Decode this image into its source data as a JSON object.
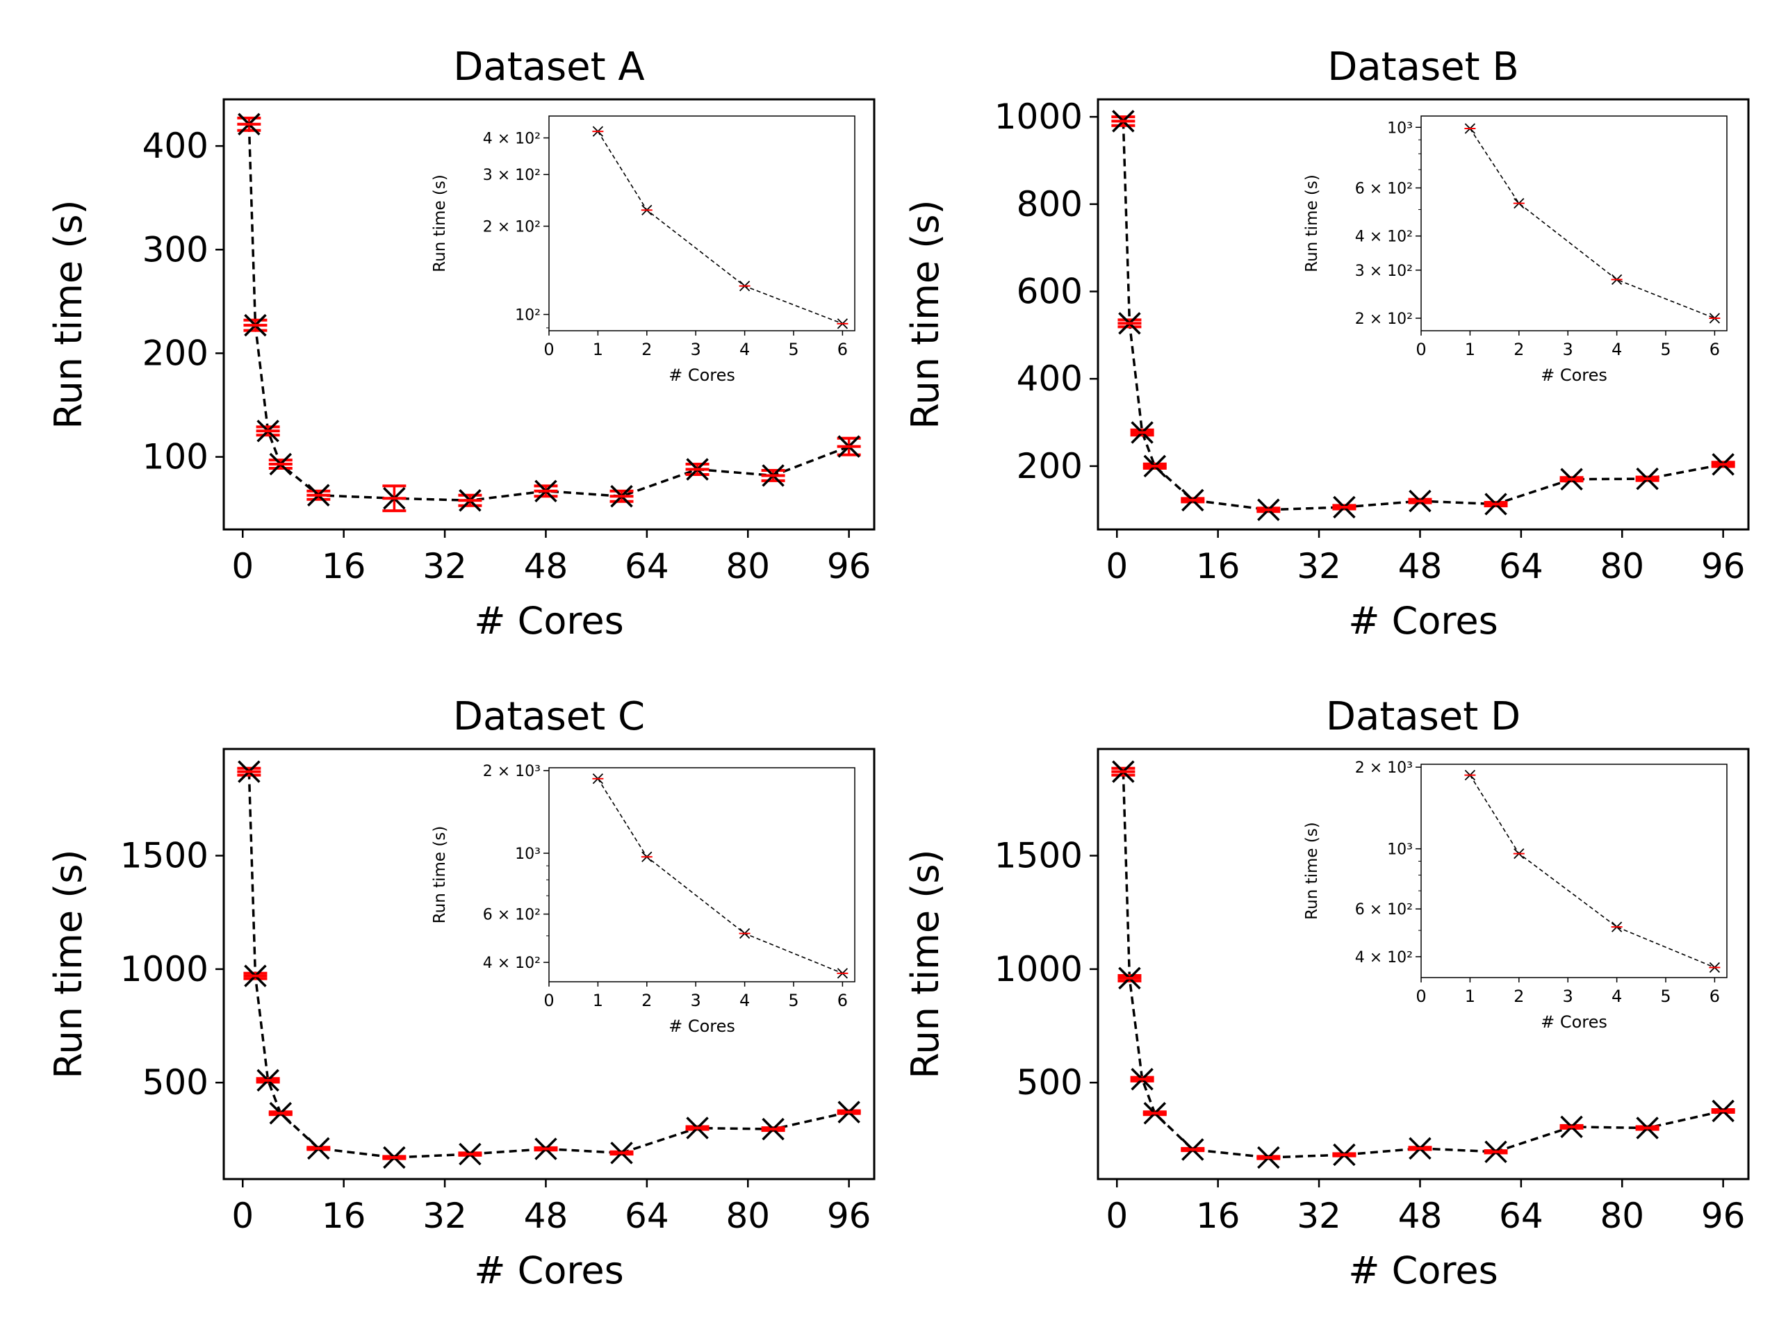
{
  "chart_data": [
    {
      "type": "line",
      "title": "Dataset A",
      "xlabel": "# Cores",
      "ylabel": "Run time (s)",
      "xlim": [
        -3,
        100
      ],
      "ylim": [
        30,
        445
      ],
      "xticks": [
        0,
        16,
        32,
        48,
        64,
        80,
        96
      ],
      "yticks": [
        100,
        200,
        300,
        400
      ],
      "x": [
        1,
        2,
        4,
        6,
        12,
        24,
        36,
        48,
        60,
        72,
        84,
        96
      ],
      "y": [
        421,
        227,
        125,
        93,
        63,
        60,
        58,
        67,
        62,
        88,
        82,
        110
      ],
      "yerr": [
        6,
        5,
        4,
        4,
        4,
        12,
        5,
        5,
        5,
        5,
        5,
        8
      ],
      "inset": {
        "xlabel": "# Cores",
        "ylabel": "Run time (s)",
        "yscale": "log",
        "xlim": [
          0,
          6.25
        ],
        "ylim": [
          88,
          475
        ],
        "xticks": [
          0,
          1,
          2,
          3,
          4,
          5,
          6
        ],
        "ytick_labels": [
          {
            "value": 100,
            "label": "10²"
          },
          {
            "value": 200,
            "label": "2 × 10²"
          },
          {
            "value": 300,
            "label": "3 × 10²"
          },
          {
            "value": 400,
            "label": "4 × 10²"
          }
        ],
        "x": [
          1,
          2,
          4,
          6
        ],
        "y": [
          421,
          227,
          125,
          93
        ]
      }
    },
    {
      "type": "line",
      "title": "Dataset B",
      "xlabel": "# Cores",
      "ylabel": "Run time (s)",
      "xlim": [
        -3,
        100
      ],
      "ylim": [
        55,
        1040
      ],
      "xticks": [
        0,
        16,
        32,
        48,
        64,
        80,
        96
      ],
      "yticks": [
        200,
        400,
        600,
        800,
        1000
      ],
      "x": [
        1,
        2,
        4,
        6,
        12,
        24,
        36,
        48,
        60,
        72,
        84,
        96
      ],
      "y": [
        990,
        527,
        277,
        200,
        122,
        100,
        106,
        120,
        113,
        170,
        171,
        204
      ],
      "yerr": [
        10,
        8,
        6,
        5,
        4,
        4,
        4,
        4,
        4,
        4,
        4,
        5
      ],
      "inset": {
        "xlabel": "# Cores",
        "ylabel": "Run time (s)",
        "yscale": "log",
        "xlim": [
          0,
          6.25
        ],
        "ylim": [
          180,
          1100
        ],
        "xticks": [
          0,
          1,
          2,
          3,
          4,
          5,
          6
        ],
        "ytick_labels": [
          {
            "value": 200,
            "label": "2 × 10²"
          },
          {
            "value": 300,
            "label": "3 × 10²"
          },
          {
            "value": 400,
            "label": "4 × 10²"
          },
          {
            "value": 600,
            "label": "6 × 10²"
          },
          {
            "value": 1000,
            "label": "10³"
          }
        ],
        "x": [
          1,
          2,
          4,
          6
        ],
        "y": [
          990,
          527,
          277,
          200
        ]
      }
    },
    {
      "type": "line",
      "title": "Dataset C",
      "xlabel": "# Cores",
      "ylabel": "Run time (s)",
      "xlim": [
        -3,
        100
      ],
      "ylim": [
        75,
        1970
      ],
      "xticks": [
        0,
        16,
        32,
        48,
        64,
        80,
        96
      ],
      "yticks": [
        500,
        1000,
        1500
      ],
      "x": [
        1,
        2,
        4,
        6,
        12,
        24,
        36,
        48,
        60,
        72,
        84,
        96
      ],
      "y": [
        1870,
        970,
        510,
        365,
        210,
        170,
        185,
        208,
        190,
        300,
        295,
        370
      ],
      "yerr": [
        15,
        12,
        8,
        6,
        5,
        5,
        5,
        5,
        5,
        6,
        6,
        6
      ],
      "inset": {
        "xlabel": "# Cores",
        "ylabel": "Run time (s)",
        "yscale": "log",
        "xlim": [
          0,
          6.25
        ],
        "ylim": [
          340,
          2050
        ],
        "xticks": [
          0,
          1,
          2,
          3,
          4,
          5,
          6
        ],
        "ytick_labels": [
          {
            "value": 400,
            "label": "4 × 10²"
          },
          {
            "value": 600,
            "label": "6 × 10²"
          },
          {
            "value": 1000,
            "label": "10³"
          },
          {
            "value": 2000,
            "label": "2 × 10³"
          }
        ],
        "x": [
          1,
          2,
          4,
          6
        ],
        "y": [
          1870,
          970,
          510,
          365
        ]
      }
    },
    {
      "type": "line",
      "title": "Dataset D",
      "xlabel": "# Cores",
      "ylabel": "Run time (s)",
      "xlim": [
        -3,
        100
      ],
      "ylim": [
        75,
        1970
      ],
      "xticks": [
        0,
        16,
        32,
        48,
        64,
        80,
        96
      ],
      "yticks": [
        500,
        1000,
        1500
      ],
      "x": [
        1,
        2,
        4,
        6,
        12,
        24,
        36,
        48,
        60,
        72,
        84,
        96
      ],
      "y": [
        1870,
        960,
        515,
        365,
        205,
        170,
        182,
        210,
        195,
        305,
        300,
        375
      ],
      "yerr": [
        15,
        12,
        8,
        6,
        5,
        5,
        5,
        5,
        5,
        6,
        6,
        6
      ],
      "inset": {
        "xlabel": "# Cores",
        "ylabel": "Run time (s)",
        "yscale": "log",
        "xlim": [
          0,
          6.25
        ],
        "ylim": [
          335,
          2050
        ],
        "xticks": [
          0,
          1,
          2,
          3,
          4,
          5,
          6
        ],
        "ytick_labels": [
          {
            "value": 400,
            "label": "4 × 10²"
          },
          {
            "value": 600,
            "label": "6 × 10²"
          },
          {
            "value": 1000,
            "label": "10³"
          },
          {
            "value": 2000,
            "label": "2 × 10³"
          }
        ],
        "x": [
          1,
          2,
          4,
          6
        ],
        "y": [
          1870,
          960,
          515,
          365
        ]
      }
    }
  ],
  "colors": {
    "line": "#000000",
    "errorbar": "#ff0000",
    "marker": "#000000"
  }
}
